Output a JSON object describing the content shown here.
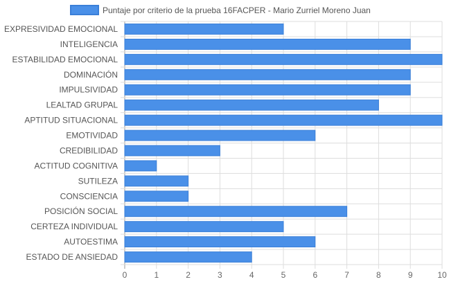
{
  "chart_data": {
    "type": "bar",
    "orientation": "horizontal",
    "categories": [
      "EXPRESIVIDAD EMOCIONAL",
      "INTELIGENCIA",
      "ESTABILIDAD EMOCIONAL",
      "DOMINACIÓN",
      "IMPULSIVIDAD",
      "LEALTAD GRUPAL",
      "APTITUD SITUACIONAL",
      "EMOTIVIDAD",
      "CREDIBILIDAD",
      "ACTITUD COGNITIVA",
      "SUTILEZA",
      "CONSCIENCIA",
      "POSICIÓN SOCIAL",
      "CERTEZA INDIVIDUAL",
      "AUTOESTIMA",
      "ESTADO DE ANSIEDAD"
    ],
    "series": [
      {
        "name": "Puntaje por criterio de la prueba 16FACPER - Mario Zurriel Moreno Juan",
        "values": [
          5,
          9,
          10,
          9,
          9,
          8,
          10,
          6,
          3,
          1,
          2,
          2,
          7,
          5,
          6,
          4
        ]
      }
    ],
    "xlim": [
      0,
      10
    ],
    "x_ticks": [
      "0",
      "1",
      "2",
      "3",
      "4",
      "5",
      "6",
      "7",
      "8",
      "9",
      "10"
    ],
    "grid": true,
    "legend_position": "top",
    "colors": {
      "bar_fill": "#4a90e8",
      "bar_border": "#3a7fd8",
      "grid": "#dddddd",
      "axis": "#999999"
    }
  }
}
